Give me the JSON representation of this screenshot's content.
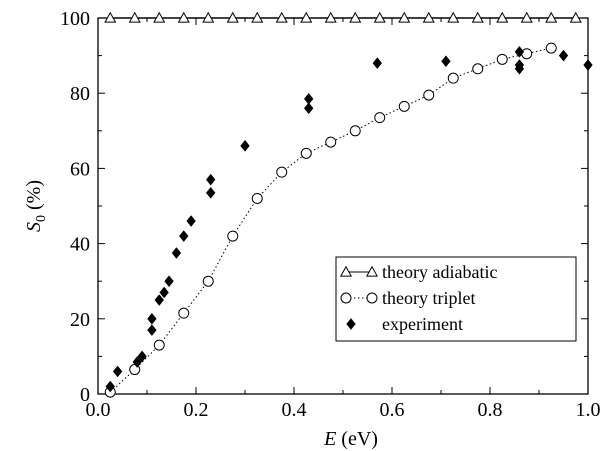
{
  "chart_data": {
    "type": "scatter",
    "title": "",
    "xlabel": {
      "main": "E",
      "unit": " (eV)"
    },
    "ylabel": {
      "main": "S",
      "sub": "0",
      "unit": " (%)"
    },
    "xlim": [
      0,
      1
    ],
    "ylim": [
      0,
      100
    ],
    "xticks": [
      "0.0",
      "0.2",
      "0.4",
      "0.6",
      "0.8",
      "1.0"
    ],
    "yticks": [
      "0",
      "20",
      "40",
      "60",
      "80",
      "100"
    ],
    "grid": false,
    "legend_position": "lower-right",
    "series": [
      {
        "name": "theory adiabatic",
        "marker": "open-triangle",
        "line": "solid",
        "x": [
          0.025,
          0.075,
          0.125,
          0.175,
          0.225,
          0.275,
          0.325,
          0.375,
          0.425,
          0.475,
          0.525,
          0.575,
          0.625,
          0.675,
          0.725,
          0.775,
          0.825,
          0.875,
          0.925,
          0.975
        ],
        "y": [
          100,
          100,
          100,
          100,
          100,
          100,
          100,
          100,
          100,
          100,
          100,
          100,
          100,
          100,
          100,
          100,
          100,
          100,
          100,
          100
        ]
      },
      {
        "name": "theory triplet",
        "marker": "open-circle",
        "line": "dotted",
        "x": [
          0.025,
          0.075,
          0.125,
          0.175,
          0.225,
          0.275,
          0.325,
          0.375,
          0.425,
          0.475,
          0.525,
          0.575,
          0.625,
          0.675,
          0.725,
          0.775,
          0.825,
          0.875,
          0.925
        ],
        "y": [
          0.5,
          6.5,
          13,
          21.5,
          30,
          42,
          52,
          59,
          64,
          67,
          70,
          73.5,
          76.5,
          79.5,
          84,
          86.5,
          89,
          90.5,
          92
        ]
      },
      {
        "name": "experiment",
        "marker": "filled-diamond",
        "line": "none",
        "x": [
          0.025,
          0.04,
          0.08,
          0.09,
          0.11,
          0.11,
          0.125,
          0.135,
          0.145,
          0.16,
          0.175,
          0.19,
          0.23,
          0.23,
          0.3,
          0.43,
          0.43,
          0.57,
          0.71,
          0.86,
          0.86,
          0.86,
          0.95,
          1.0
        ],
        "y": [
          2,
          6,
          8.5,
          10,
          17,
          20,
          25,
          27,
          30,
          37.5,
          42,
          46,
          53.5,
          57,
          66,
          76,
          78.5,
          88,
          88.5,
          86.5,
          87.5,
          91,
          90,
          87.5
        ]
      }
    ]
  }
}
